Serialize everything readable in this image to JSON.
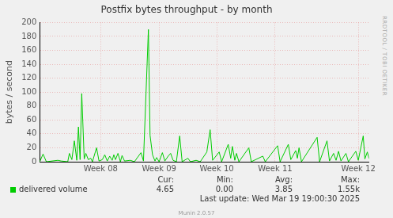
{
  "chart_data": {
    "type": "line",
    "title": "Postfix bytes throughput - by month",
    "y_label": "bytes / second",
    "x": [
      0,
      0.4,
      0.8,
      2.2,
      2.6,
      3.4,
      3.6,
      3.9,
      4.2,
      4.5,
      4.7,
      4.9,
      5.1,
      5.4,
      5.6,
      5.9,
      6.2,
      6.4,
      6.9,
      7.2,
      7.6,
      7.9,
      8.2,
      8.5,
      8.8,
      9.0,
      9.2,
      9.5,
      9.8,
      10.0,
      10.3,
      11.0,
      11.5,
      12.3,
      12.6,
      13.2,
      13.4,
      13.7,
      14.0,
      14.2,
      14.5,
      14.9,
      15.2,
      15.6,
      15.9,
      16.2,
      16.6,
      17.0,
      17.3,
      18.0,
      18.3,
      19.0,
      19.5,
      20.3,
      20.7,
      21.0,
      21.8,
      22.1,
      22.9,
      23.2,
      23.4,
      23.7,
      23.9,
      24.2,
      25.4,
      25.7,
      27.1,
      27.4,
      28.9,
      29.2,
      30.2,
      30.5,
      31.1,
      31.3,
      31.5,
      31.8,
      33.7,
      34.0,
      34.9,
      35.2,
      35.7,
      36.0,
      36.3,
      36.6,
      37.2,
      37.5,
      38.4,
      38.7,
      39.3,
      39.5,
      39.8,
      40
    ],
    "series": [
      {
        "name": "delivered volume",
        "color": "#00cc00",
        "values": [
          0,
          11,
          0,
          2,
          1,
          0,
          12,
          3,
          30,
          2,
          50,
          3,
          98,
          4,
          12,
          3,
          5,
          0,
          20,
          1,
          3,
          10,
          1,
          8,
          2,
          10,
          3,
          12,
          0,
          9,
          1,
          2,
          0,
          13,
          1,
          190,
          38,
          10,
          1,
          6,
          0,
          13,
          1,
          8,
          12,
          2,
          0,
          37,
          0,
          5,
          0,
          2,
          0,
          14,
          46,
          2,
          14,
          0,
          25,
          5,
          22,
          2,
          12,
          0,
          20,
          0,
          8,
          0,
          23,
          0,
          25,
          3,
          16,
          5,
          20,
          0,
          35,
          0,
          30,
          1,
          12,
          2,
          15,
          1,
          12,
          0,
          15,
          2,
          37,
          4,
          14,
          4.65
        ],
        "stats": [
          {
            "name": "Cur:",
            "value": 4.65,
            "label": "4.65"
          },
          {
            "name": "Min:",
            "value": 0,
            "label": "0.00"
          },
          {
            "name": "Avg:",
            "value": 3.85,
            "label": "3.85"
          },
          {
            "name": "Max:",
            "value": 1550,
            "label": "1.55k"
          }
        ]
      }
    ],
    "xlim": [
      0,
      40
    ],
    "xticks": [
      {
        "value": 7.4,
        "label": "Week 08"
      },
      {
        "value": 14.5,
        "label": "Week 09"
      },
      {
        "value": 21.5,
        "label": "Week 10"
      },
      {
        "value": 28.6,
        "label": "Week 11"
      },
      {
        "value": 38.7,
        "label": "Week 12"
      }
    ],
    "ylim": [
      0,
      200
    ],
    "yticks": [
      0,
      20,
      40,
      60,
      80,
      100,
      120,
      140,
      160,
      180,
      200
    ],
    "grid": true,
    "last_update": "Last update: Wed Mar 19 19:00:30 2025",
    "footer": "Munin 2.0.57",
    "side_text": "RRDTOOL / TOBI OETIKER"
  }
}
